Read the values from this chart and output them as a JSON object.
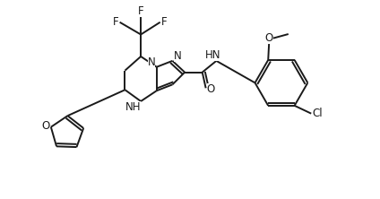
{
  "bg_color": "#ffffff",
  "line_color": "#1a1a1a",
  "line_width": 1.4,
  "font_size": 8.5,
  "figsize": [
    4.24,
    2.22
  ],
  "dpi": 100,
  "xlim": [
    0,
    4.24
  ],
  "ylim": [
    0,
    2.22
  ]
}
